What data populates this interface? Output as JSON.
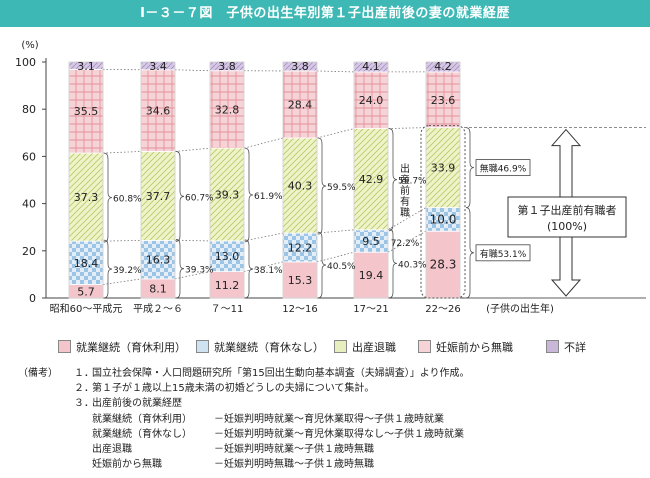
{
  "title": "Ⅰ－３－７図　子供の出生年別第１子出産前後の妻の就業経歴",
  "colors": {
    "header": "#3db8b4",
    "continue_leave": "#f4c6cc",
    "continue_noleave": "#cfe2f1",
    "retire": "#e8efbf",
    "prepreg_none": "#f6d3d6",
    "unknown": "#c9b7d9"
  },
  "chart_data": {
    "type": "bar",
    "stacked": true,
    "y_unit": "(%)",
    "ylim": [
      0,
      100
    ],
    "y_ticks": [
      "0",
      "20",
      "40",
      "60",
      "80",
      "100"
    ],
    "categories": [
      "昭和60～平成元",
      "平成２～６",
      "７～11",
      "12～16",
      "17～21",
      "22～26"
    ],
    "x_suffix": "(子供の出生年)",
    "series": [
      {
        "name": "就業継続（育休利用）",
        "values": [
          5.7,
          8.1,
          11.2,
          15.3,
          19.4,
          28.3
        ]
      },
      {
        "name": "就業継続（育休なし）",
        "values": [
          18.4,
          16.3,
          13.0,
          12.2,
          9.5,
          10.0
        ]
      },
      {
        "name": "出産退職",
        "values": [
          37.3,
          37.7,
          39.3,
          40.3,
          42.9,
          33.9
        ]
      },
      {
        "name": "妊娠前から無職",
        "values": [
          35.5,
          34.6,
          32.8,
          28.4,
          24.0,
          23.6
        ]
      },
      {
        "name": "不詳",
        "values": [
          3.1,
          3.4,
          3.8,
          3.8,
          4.1,
          4.2
        ]
      }
    ],
    "bar_labels": [
      [
        "5.7",
        "18.4",
        "37.3",
        "35.5",
        "3.1"
      ],
      [
        "8.1",
        "16.3",
        "37.7",
        "34.6",
        "3.4"
      ],
      [
        "11.2",
        "13.0",
        "39.3",
        "32.8",
        "3.8"
      ],
      [
        "15.3",
        "12.2",
        "40.3",
        "28.4",
        "3.8"
      ],
      [
        "19.4",
        "9.5",
        "42.9",
        "24.0",
        "4.1"
      ],
      [
        "28.3",
        "10.0",
        "33.9",
        "23.6",
        "4.2"
      ]
    ],
    "brace_labels": [
      {
        "low": "39.2%",
        "high": "60.8%"
      },
      {
        "low": "39.3%",
        "high": "60.7%"
      },
      {
        "low": "38.1%",
        "high": "61.9%"
      },
      {
        "low": "40.5%",
        "high": "59.5%"
      },
      {
        "low": "40.3%",
        "high": "59.7%"
      }
    ],
    "vertical_note": "出産前有職",
    "vertical_total": "72.2%",
    "right_panel": {
      "top_label": "無職46.9%",
      "bottom_label": "有職53.1%",
      "box_line1": "第１子出産前有職者",
      "box_line2": "(100%)"
    }
  },
  "notes": {
    "prefix": "（備考）",
    "items": [
      {
        "num": "１．",
        "text": "国立社会保障・人口問題研究所「第15回出生動向基本調査（夫婦調査）」より作成。"
      },
      {
        "num": "２．",
        "text": "第１子が１歳以上15歳未満の初婚どうしの夫婦について集計。"
      },
      {
        "num": "３．",
        "text": "出産前後の就業経歴"
      }
    ],
    "definitions": [
      {
        "term": "就業継続（育休利用）",
        "def": "－妊娠判明時就業～育児休業取得～子供１歳時就業"
      },
      {
        "term": "就業継続（育休なし）",
        "def": "－妊娠判明時就業～育児休業取得なし～子供１歳時就業"
      },
      {
        "term": "出産退職",
        "def": "－妊娠判明時就業～子供１歳時無職"
      },
      {
        "term": "妊娠前から無職",
        "def": "－妊娠判明時無職～子供１歳時無職"
      }
    ]
  }
}
